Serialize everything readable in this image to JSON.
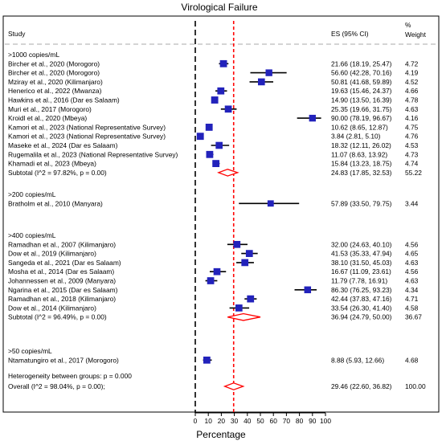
{
  "chart_data": {
    "type": "forest",
    "title": "Virological Failure",
    "xlabel": "Percentage",
    "xlim": [
      0,
      100
    ],
    "xticks": [
      0,
      10,
      20,
      30,
      40,
      50,
      60,
      70,
      80,
      90,
      100
    ],
    "null_line": 0,
    "overall_line": 29.46,
    "headers": {
      "study": "Study",
      "es": "ES (95% CI)",
      "weight_line1": "%",
      "weight_line2": "Weight"
    },
    "groups": [
      {
        "label": ">1000 copies/mL",
        "studies": [
          {
            "name": "Bircher et al., 2020 (Morogoro)",
            "es": 21.66,
            "lo": 18.19,
            "hi": 25.47,
            "es_text": "21.66 (18.19, 25.47)",
            "weight": "4.72"
          },
          {
            "name": "Bircher et al., 2020 (Morogoro)",
            "es": 56.6,
            "lo": 42.28,
            "hi": 70.16,
            "es_text": "56.60 (42.28, 70.16)",
            "weight": "4.19"
          },
          {
            "name": "Mziray et al., 2020 (Kilimanjaro)",
            "es": 50.81,
            "lo": 41.68,
            "hi": 59.89,
            "es_text": "50.81 (41.68, 59.89)",
            "weight": "4.52"
          },
          {
            "name": "Henerico et al., 2022 (Mwanza)",
            "es": 19.63,
            "lo": 15.46,
            "hi": 24.37,
            "es_text": "19.63 (15.46, 24.37)",
            "weight": "4.66"
          },
          {
            "name": "Hawkins et al., 2016 (Dar es Salaam)",
            "es": 14.9,
            "lo": 13.5,
            "hi": 16.39,
            "es_text": "14.90 (13.50, 16.39)",
            "weight": "4.78"
          },
          {
            "name": "Muri et al., 2017  (Morogoro)",
            "es": 25.35,
            "lo": 19.66,
            "hi": 31.75,
            "es_text": "25.35 (19.66, 31.75)",
            "weight": "4.63"
          },
          {
            "name": "Kroidl et al., 2020 (Mbeya)",
            "es": 90.0,
            "lo": 78.19,
            "hi": 96.67,
            "es_text": "90.00 (78.19, 96.67)",
            "weight": "4.16"
          },
          {
            "name": "Kamori et al., 2023 (National Representative Survey)",
            "es": 10.62,
            "lo": 8.65,
            "hi": 12.87,
            "es_text": "10.62 (8.65, 12.87)",
            "weight": "4.75"
          },
          {
            "name": "Kamori et al., 2023 (National Representative Survey)",
            "es": 3.84,
            "lo": 2.81,
            "hi": 5.1,
            "es_text": "3.84 (2.81, 5.10)",
            "weight": "4.76"
          },
          {
            "name": "Maseke et al., 2024 (Dar es Salaam)",
            "es": 18.32,
            "lo": 12.11,
            "hi": 26.02,
            "es_text": "18.32 (12.11, 26.02)",
            "weight": "4.53"
          },
          {
            "name": "Rugemalila et al., 2023 (National Representative Survey)",
            "es": 11.07,
            "lo": 8.63,
            "hi": 13.92,
            "es_text": "11.07 (8.63, 13.92)",
            "weight": "4.73"
          },
          {
            "name": "Khamadi et al., 2023 (Mbeya)",
            "es": 15.84,
            "lo": 13.23,
            "hi": 18.75,
            "es_text": "15.84 (13.23, 18.75)",
            "weight": "4.74"
          }
        ],
        "subtotal": {
          "label": "Subtotal  (I^2 = 97.82%, p = 0.00)",
          "es": 24.83,
          "lo": 17.85,
          "hi": 32.53,
          "es_text": "24.83 (17.85, 32.53)",
          "weight": "55.22"
        }
      },
      {
        "label": ">200 copies/mL",
        "studies": [
          {
            "name": "Bratholm et al., 2010 (Manyara)",
            "es": 57.89,
            "lo": 33.5,
            "hi": 79.75,
            "es_text": "57.89 (33.50, 79.75)",
            "weight": "3.44"
          }
        ]
      },
      {
        "label": ">400 copies/mL",
        "studies": [
          {
            "name": "Ramadhan et al., 2007 (Kilimanjaro)",
            "es": 32.0,
            "lo": 24.63,
            "hi": 40.1,
            "es_text": "32.00 (24.63, 40.10)",
            "weight": "4.56"
          },
          {
            "name": "Dow et al., 2019 (Kilimanjaro)",
            "es": 41.53,
            "lo": 35.33,
            "hi": 47.94,
            "es_text": "41.53 (35.33, 47.94)",
            "weight": "4.65"
          },
          {
            "name": "Sangeda et al., 2021 (Dar es Salaam)",
            "es": 38.1,
            "lo": 31.5,
            "hi": 45.03,
            "es_text": "38.10 (31.50, 45.03)",
            "weight": "4.63"
          },
          {
            "name": "Mosha et al., 2014 (Dar es Salaam)",
            "es": 16.67,
            "lo": 11.09,
            "hi": 23.61,
            "es_text": "16.67 (11.09, 23.61)",
            "weight": "4.56"
          },
          {
            "name": "Johannessen et al., 2009  (Manyara)",
            "es": 11.79,
            "lo": 7.78,
            "hi": 16.91,
            "es_text": "11.79 (7.78, 16.91)",
            "weight": "4.63"
          },
          {
            "name": "Ngarina et al., 2015 (Dar es Salaam)",
            "es": 86.3,
            "lo": 76.25,
            "hi": 93.23,
            "es_text": "86.30 (76.25, 93.23)",
            "weight": "4.34"
          },
          {
            "name": "Ramadhan et al., 2018 (Kilimanjaro)",
            "es": 42.44,
            "lo": 37.83,
            "hi": 47.16,
            "es_text": "42.44 (37.83, 47.16)",
            "weight": "4.71"
          },
          {
            "name": "Dow et al., 2014 (Kilimanjaro)",
            "es": 33.54,
            "lo": 26.3,
            "hi": 41.4,
            "es_text": "33.54 (26.30, 41.40)",
            "weight": "4.58"
          }
        ],
        "subtotal": {
          "label": "Subtotal  (I^2 = 96.49%, p = 0.00)",
          "es": 36.94,
          "lo": 24.79,
          "hi": 50.0,
          "es_text": "36.94 (24.79, 50.00)",
          "weight": "36.67"
        }
      },
      {
        "label": ">50 copies/mL",
        "studies": [
          {
            "name": "Ntamatungiro et al., 2017  (Morogoro)",
            "es": 8.88,
            "lo": 5.93,
            "hi": 12.66,
            "es_text": "8.88 (5.93, 12.66)",
            "weight": "4.68"
          }
        ]
      }
    ],
    "heterogeneity": "Heterogeneity between groups: p = 0.000",
    "overall": {
      "label": "Overall  (I^2 = 98.04%, p = 0.00);",
      "es": 29.46,
      "lo": 22.6,
      "hi": 36.82,
      "es_text": "29.46 (22.60, 36.82)",
      "weight": "100.00"
    },
    "colors": {
      "marker": "#2222bb",
      "diamond": "#ff0000",
      "overall_line": "#ff0000",
      "null_line": "#000000",
      "separator": "#bbbbbb"
    }
  }
}
